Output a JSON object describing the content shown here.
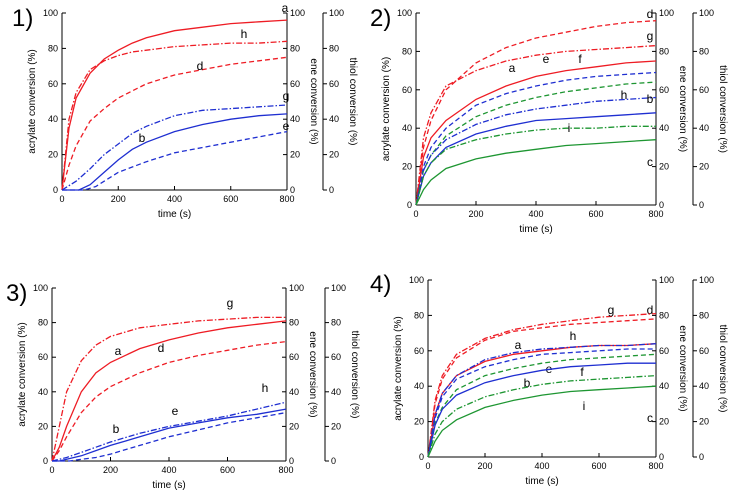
{
  "figure": {
    "panel_labels": [
      "1)",
      "2)",
      "3)",
      "4)"
    ]
  },
  "colors": {
    "red": "#ee1c24",
    "blue": "#1f2fd1",
    "green": "#1e9632"
  },
  "chart_data": [
    {
      "type": "line",
      "panel": "1)",
      "xlabel": "time (s)",
      "ylabels": [
        "acrylate conversion (%)",
        "ene conversion (%)",
        "thiol conversion (%)"
      ],
      "xlim": [
        0,
        800
      ],
      "ylim": [
        0,
        100
      ],
      "xticks": [
        "0",
        "200",
        "400",
        "600",
        "800"
      ],
      "yticks": [
        "0",
        "20",
        "40",
        "60",
        "80",
        "100"
      ],
      "grid": false,
      "series": [
        {
          "name": "a",
          "color": "red",
          "style": "solid",
          "x": [
            0,
            25,
            50,
            100,
            150,
            200,
            250,
            300,
            400,
            500,
            600,
            700,
            800
          ],
          "y": [
            0,
            35,
            52,
            66,
            74,
            79,
            83,
            86,
            90,
            92,
            94,
            95,
            96
          ]
        },
        {
          "name": "h",
          "color": "red",
          "style": "dashdot",
          "x": [
            0,
            25,
            50,
            100,
            150,
            200,
            250,
            300,
            400,
            500,
            600,
            700,
            800
          ],
          "y": [
            0,
            40,
            55,
            68,
            73,
            76,
            78,
            79,
            81,
            82,
            83,
            83,
            84
          ]
        },
        {
          "name": "d",
          "color": "red",
          "style": "dash",
          "x": [
            0,
            25,
            50,
            100,
            150,
            200,
            250,
            300,
            400,
            500,
            600,
            700,
            800
          ],
          "y": [
            0,
            14,
            25,
            39,
            46,
            52,
            56,
            60,
            65,
            68,
            71,
            73,
            75
          ]
        },
        {
          "name": "g",
          "color": "blue",
          "style": "dashdot",
          "x": [
            0,
            50,
            100,
            150,
            200,
            250,
            300,
            400,
            500,
            600,
            700,
            800
          ],
          "y": [
            0,
            5,
            12,
            20,
            26,
            32,
            36,
            42,
            45,
            46,
            47,
            48
          ]
        },
        {
          "name": "b",
          "color": "blue",
          "style": "solid",
          "x": [
            0,
            60,
            100,
            150,
            200,
            250,
            300,
            400,
            500,
            600,
            700,
            800
          ],
          "y": [
            0,
            0,
            3,
            10,
            17,
            23,
            27,
            33,
            37,
            40,
            42,
            43
          ]
        },
        {
          "name": "e",
          "color": "blue",
          "style": "dash",
          "x": [
            0,
            80,
            120,
            150,
            200,
            250,
            300,
            400,
            500,
            600,
            700,
            800
          ],
          "y": [
            0,
            0,
            2,
            5,
            10,
            13,
            16,
            21,
            24,
            27,
            30,
            33
          ]
        }
      ]
    },
    {
      "type": "line",
      "panel": "2)",
      "xlabel": "time (s)",
      "ylabels": [
        "acrylate conversion (%)",
        "ene conversion (%)",
        "thiol conversion (%)"
      ],
      "xlim": [
        0,
        800
      ],
      "ylim": [
        0,
        100
      ],
      "xticks": [
        "0",
        "200",
        "400",
        "600",
        "800"
      ],
      "yticks": [
        "0",
        "20",
        "40",
        "60",
        "80",
        "100"
      ],
      "grid": false,
      "series": [
        {
          "name": "d",
          "color": "red",
          "style": "dash",
          "x": [
            0,
            25,
            50,
            100,
            200,
            300,
            400,
            500,
            600,
            700,
            800
          ],
          "y": [
            0,
            30,
            44,
            60,
            74,
            82,
            87,
            90,
            93,
            95,
            96
          ]
        },
        {
          "name": "g",
          "color": "red",
          "style": "dashdot",
          "x": [
            0,
            25,
            50,
            100,
            200,
            300,
            400,
            500,
            600,
            700,
            800
          ],
          "y": [
            0,
            35,
            48,
            62,
            70,
            75,
            78,
            80,
            81,
            82,
            83
          ]
        },
        {
          "name": "a",
          "color": "red",
          "style": "solid",
          "x": [
            0,
            25,
            50,
            100,
            200,
            300,
            400,
            500,
            600,
            700,
            800
          ],
          "y": [
            0,
            25,
            35,
            44,
            55,
            62,
            67,
            70,
            72,
            74,
            75
          ]
        },
        {
          "name": "e",
          "color": "blue",
          "style": "dash",
          "x": [
            0,
            25,
            50,
            100,
            200,
            300,
            400,
            500,
            600,
            700,
            800
          ],
          "y": [
            0,
            20,
            30,
            40,
            52,
            58,
            62,
            65,
            67,
            68,
            69
          ]
        },
        {
          "name": "f",
          "color": "green",
          "style": "dash",
          "x": [
            0,
            25,
            50,
            100,
            200,
            300,
            400,
            500,
            600,
            700,
            800
          ],
          "y": [
            0,
            18,
            26,
            36,
            46,
            52,
            56,
            59,
            61,
            63,
            64
          ]
        },
        {
          "name": "h",
          "color": "blue",
          "style": "dashdot",
          "x": [
            0,
            25,
            50,
            100,
            200,
            300,
            400,
            500,
            600,
            700,
            800
          ],
          "y": [
            0,
            18,
            26,
            34,
            42,
            47,
            50,
            52,
            54,
            55,
            56
          ]
        },
        {
          "name": "b",
          "color": "blue",
          "style": "solid",
          "x": [
            0,
            25,
            50,
            100,
            200,
            300,
            400,
            500,
            600,
            700,
            800
          ],
          "y": [
            0,
            15,
            22,
            30,
            37,
            41,
            44,
            45,
            46,
            47,
            48
          ]
        },
        {
          "name": "i",
          "color": "green",
          "style": "dashdot",
          "x": [
            0,
            25,
            50,
            100,
            200,
            300,
            400,
            500,
            600,
            700,
            800
          ],
          "y": [
            0,
            15,
            22,
            29,
            34,
            37,
            39,
            40,
            40,
            41,
            41
          ]
        },
        {
          "name": "c",
          "color": "green",
          "style": "solid",
          "x": [
            0,
            25,
            50,
            100,
            200,
            300,
            400,
            500,
            600,
            700,
            800
          ],
          "y": [
            0,
            8,
            13,
            19,
            24,
            27,
            29,
            31,
            32,
            33,
            34
          ]
        }
      ]
    },
    {
      "type": "line",
      "panel": "3)",
      "xlabel": "time (s)",
      "ylabels": [
        "acrylate conversion (%)",
        "ene conversion (%)",
        "thiol conversion (%)"
      ],
      "xlim": [
        0,
        800
      ],
      "ylim": [
        0,
        100
      ],
      "xticks": [
        "0",
        "200",
        "400",
        "600",
        "800"
      ],
      "yticks": [
        "0",
        "20",
        "40",
        "60",
        "80",
        "100"
      ],
      "grid": false,
      "series": [
        {
          "name": "g",
          "color": "red",
          "style": "dashdot",
          "x": [
            0,
            25,
            50,
            100,
            150,
            200,
            300,
            400,
            500,
            600,
            700,
            800
          ],
          "y": [
            0,
            20,
            40,
            58,
            67,
            72,
            77,
            79,
            81,
            82,
            83,
            83
          ]
        },
        {
          "name": "a",
          "color": "red",
          "style": "solid",
          "x": [
            0,
            25,
            50,
            100,
            150,
            200,
            300,
            400,
            500,
            600,
            700,
            800
          ],
          "y": [
            0,
            8,
            20,
            40,
            51,
            57,
            65,
            70,
            74,
            77,
            79,
            81
          ]
        },
        {
          "name": "d",
          "color": "red",
          "style": "dash",
          "x": [
            0,
            25,
            50,
            100,
            150,
            200,
            300,
            400,
            500,
            600,
            700,
            800
          ],
          "y": [
            0,
            6,
            14,
            28,
            37,
            43,
            51,
            57,
            61,
            64,
            67,
            69
          ]
        },
        {
          "name": "h",
          "color": "blue",
          "style": "dashdot",
          "x": [
            0,
            25,
            50,
            100,
            150,
            200,
            300,
            400,
            500,
            600,
            700,
            800
          ],
          "y": [
            0,
            1,
            2,
            5,
            8,
            11,
            16,
            20,
            23,
            26,
            30,
            34
          ]
        },
        {
          "name": "b",
          "color": "blue",
          "style": "solid",
          "x": [
            0,
            25,
            50,
            100,
            150,
            200,
            300,
            400,
            500,
            600,
            700,
            800
          ],
          "y": [
            0,
            0,
            1,
            3,
            6,
            9,
            14,
            19,
            22,
            25,
            27,
            30
          ]
        },
        {
          "name": "e",
          "color": "blue",
          "style": "dash",
          "x": [
            0,
            60,
            100,
            150,
            200,
            300,
            400,
            500,
            600,
            700,
            800
          ],
          "y": [
            0,
            0,
            1,
            2,
            4,
            9,
            14,
            18,
            22,
            25,
            28
          ]
        }
      ]
    },
    {
      "type": "line",
      "panel": "4)",
      "xlabel": "time (s)",
      "ylabels": [
        "acrylate conversion (%)",
        "ene conversion (%)",
        "thiol conversion (%)"
      ],
      "xlim": [
        0,
        800
      ],
      "ylim": [
        0,
        100
      ],
      "xticks": [
        "0",
        "200",
        "400",
        "600",
        "800"
      ],
      "yticks": [
        "0",
        "20",
        "40",
        "60",
        "80",
        "100"
      ],
      "grid": false,
      "series": [
        {
          "name": "d",
          "color": "red",
          "style": "dash",
          "x": [
            0,
            25,
            50,
            100,
            200,
            300,
            400,
            500,
            600,
            700,
            800
          ],
          "y": [
            0,
            30,
            44,
            56,
            66,
            71,
            73,
            75,
            76,
            77,
            78
          ]
        },
        {
          "name": "g",
          "color": "red",
          "style": "dashdot",
          "x": [
            0,
            25,
            50,
            100,
            200,
            300,
            400,
            500,
            600,
            700,
            800
          ],
          "y": [
            0,
            32,
            46,
            58,
            67,
            72,
            75,
            77,
            79,
            80,
            81
          ]
        },
        {
          "name": "a",
          "color": "red",
          "style": "solid",
          "x": [
            0,
            25,
            50,
            100,
            200,
            300,
            400,
            500,
            600,
            700,
            800
          ],
          "y": [
            0,
            24,
            36,
            46,
            54,
            58,
            60,
            62,
            63,
            63,
            64
          ]
        },
        {
          "name": "h",
          "color": "blue",
          "style": "dashdot",
          "x": [
            0,
            25,
            50,
            100,
            200,
            300,
            400,
            500,
            600,
            700,
            800
          ],
          "y": [
            0,
            24,
            36,
            46,
            55,
            59,
            61,
            62,
            63,
            63,
            64
          ]
        },
        {
          "name": "e",
          "color": "blue",
          "style": "dash",
          "x": [
            0,
            25,
            50,
            100,
            200,
            300,
            400,
            500,
            600,
            700,
            800
          ],
          "y": [
            0,
            22,
            34,
            44,
            51,
            55,
            58,
            59,
            60,
            61,
            61
          ]
        },
        {
          "name": "f",
          "color": "green",
          "style": "dash",
          "x": [
            0,
            25,
            50,
            100,
            200,
            300,
            400,
            500,
            600,
            700,
            800
          ],
          "y": [
            0,
            19,
            28,
            38,
            46,
            50,
            53,
            55,
            56,
            57,
            58
          ]
        },
        {
          "name": "b",
          "color": "blue",
          "style": "solid",
          "x": [
            0,
            25,
            50,
            100,
            200,
            300,
            400,
            500,
            600,
            700,
            800
          ],
          "y": [
            0,
            18,
            27,
            35,
            42,
            46,
            49,
            51,
            52,
            53,
            53
          ]
        },
        {
          "name": "i",
          "color": "green",
          "style": "dashdot",
          "x": [
            0,
            25,
            50,
            100,
            200,
            300,
            400,
            500,
            600,
            700,
            800
          ],
          "y": [
            0,
            13,
            20,
            27,
            34,
            38,
            41,
            43,
            44,
            45,
            46
          ]
        },
        {
          "name": "c",
          "color": "green",
          "style": "solid",
          "x": [
            0,
            25,
            50,
            100,
            200,
            300,
            400,
            500,
            600,
            700,
            800
          ],
          "y": [
            0,
            9,
            15,
            21,
            28,
            32,
            35,
            37,
            38,
            39,
            40
          ]
        }
      ]
    }
  ]
}
